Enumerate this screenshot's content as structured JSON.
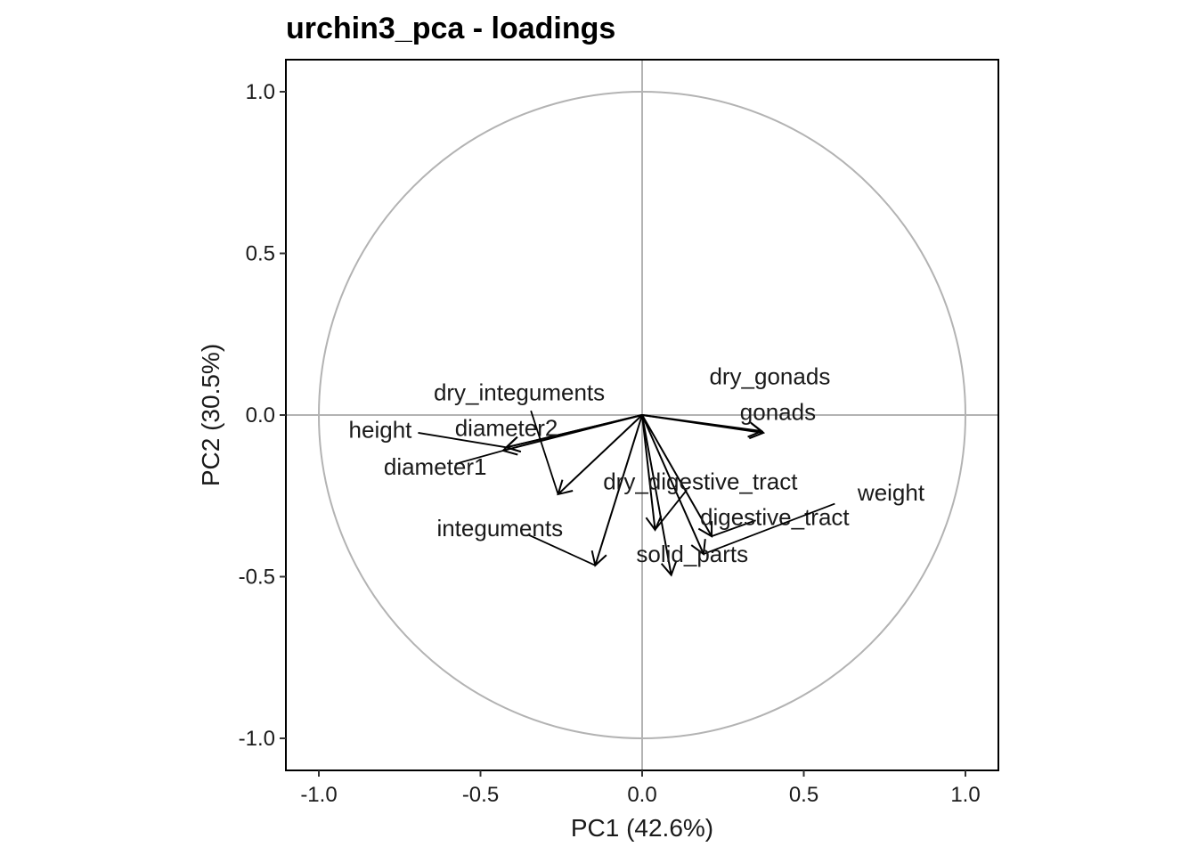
{
  "chart_data": {
    "type": "scatter",
    "subtype": "pca-loadings-biplot",
    "title": "urchin3_pca - loadings",
    "xlabel": "PC1 (42.6%)",
    "ylabel": "PC2 (30.5%)",
    "xlim": [
      -1.1,
      1.1
    ],
    "ylim": [
      -1.1,
      1.1
    ],
    "xticks": [
      {
        "value": -1.0,
        "label": "-1.0"
      },
      {
        "value": -0.5,
        "label": "-0.5"
      },
      {
        "value": 0.0,
        "label": "0.0"
      },
      {
        "value": 0.5,
        "label": "0.5"
      },
      {
        "value": 1.0,
        "label": "1.0"
      }
    ],
    "yticks": [
      {
        "value": -1.0,
        "label": "-1.0"
      },
      {
        "value": -0.5,
        "label": "-0.5"
      },
      {
        "value": 0.0,
        "label": "0.0"
      },
      {
        "value": 0.5,
        "label": "0.5"
      },
      {
        "value": 1.0,
        "label": "1.0"
      }
    ],
    "unit_circle": true,
    "zero_lines": true,
    "grid": false,
    "reference_color": "#b3b3b3",
    "arrow_color": "#000000",
    "loadings": [
      {
        "name": "height",
        "x": -0.42,
        "y": -0.1,
        "label_x": -0.81,
        "label_y": -0.045
      },
      {
        "name": "diameter2",
        "x": -0.42,
        "y": -0.1,
        "label_x": -0.42,
        "label_y": -0.04
      },
      {
        "name": "diameter1",
        "x": -0.43,
        "y": -0.11,
        "label_x": -0.64,
        "label_y": -0.16
      },
      {
        "name": "dry_integuments",
        "x": -0.26,
        "y": -0.245,
        "label_x": -0.38,
        "label_y": 0.07
      },
      {
        "name": "integuments",
        "x": -0.145,
        "y": -0.465,
        "label_x": -0.44,
        "label_y": -0.35
      },
      {
        "name": "dry_gonads",
        "x": 0.375,
        "y": -0.055,
        "label_x": 0.395,
        "label_y": 0.12
      },
      {
        "name": "gonads",
        "x": 0.37,
        "y": -0.05,
        "label_x": 0.42,
        "label_y": 0.01
      },
      {
        "name": "dry_digestive_tract",
        "x": 0.04,
        "y": -0.355,
        "label_x": 0.18,
        "label_y": -0.205
      },
      {
        "name": "digestive_tract",
        "x": 0.215,
        "y": -0.375,
        "label_x": 0.41,
        "label_y": -0.315
      },
      {
        "name": "weight",
        "x": 0.19,
        "y": -0.43,
        "label_x": 0.77,
        "label_y": -0.24
      },
      {
        "name": "solid_parts",
        "x": 0.09,
        "y": -0.495,
        "label_x": 0.155,
        "label_y": -0.43
      }
    ]
  }
}
